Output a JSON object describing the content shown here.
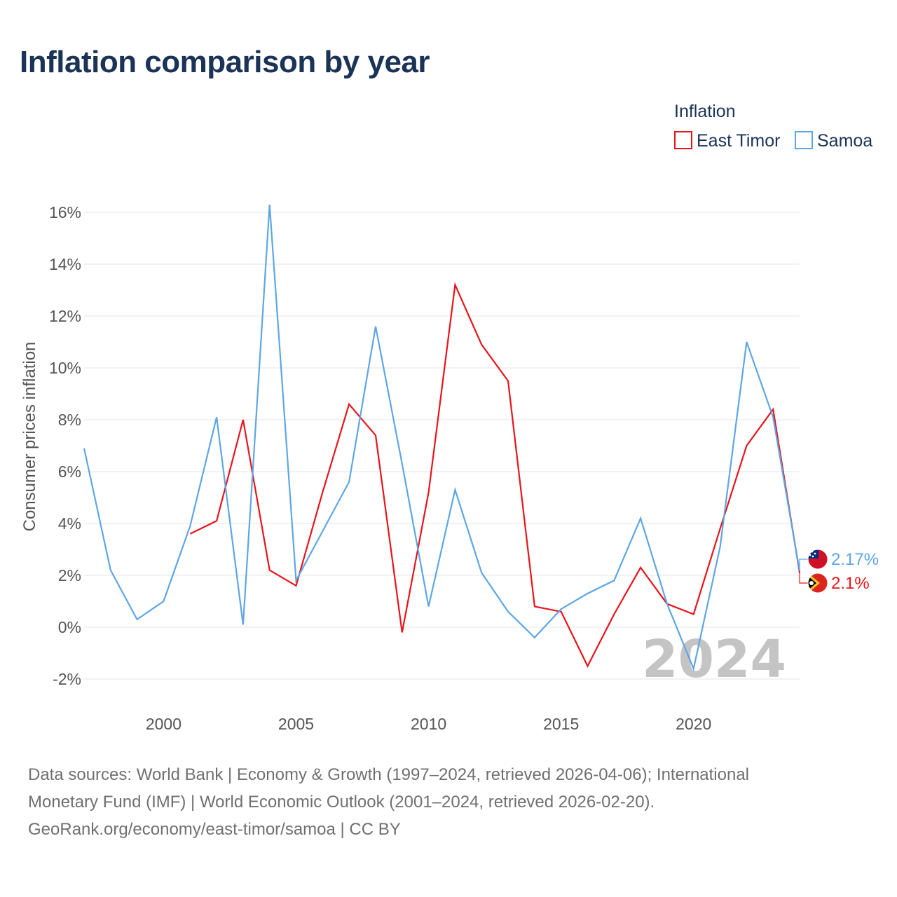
{
  "title": "Inflation comparison by year",
  "legend": {
    "title": "Inflation",
    "items": [
      {
        "name": "East Timor",
        "color": "#e8141b"
      },
      {
        "name": "Samoa",
        "color": "#5ea6e4"
      }
    ]
  },
  "chart_data": {
    "type": "line",
    "ylabel": "Consumer prices inflation",
    "xlabel": "",
    "xlim": [
      1997,
      2024
    ],
    "ylim": [
      -3,
      16.5
    ],
    "yticks": [
      -2,
      0,
      2,
      4,
      6,
      8,
      10,
      12,
      14,
      16
    ],
    "ytick_labels": [
      "-2%",
      "0%",
      "2%",
      "4%",
      "6%",
      "8%",
      "10%",
      "12%",
      "14%",
      "16%"
    ],
    "xticks": [
      2000,
      2005,
      2010,
      2015,
      2020
    ],
    "xtick_labels": [
      "2000",
      "2005",
      "2010",
      "2015",
      "2020"
    ],
    "current_year": "2024",
    "series": [
      {
        "name": "East Timor",
        "color": "#e8141b",
        "end_label": "2.1%",
        "x": [
          2001,
          2002,
          2003,
          2004,
          2005,
          2006,
          2007,
          2008,
          2009,
          2010,
          2011,
          2012,
          2013,
          2014,
          2015,
          2016,
          2017,
          2018,
          2019,
          2020,
          2021,
          2022,
          2023,
          2024
        ],
        "values": [
          3.6,
          4.1,
          8.0,
          2.2,
          1.6,
          5.2,
          8.6,
          7.4,
          -0.2,
          5.2,
          13.2,
          10.9,
          9.5,
          0.8,
          0.6,
          -1.5,
          0.5,
          2.3,
          0.9,
          0.5,
          3.8,
          7.0,
          8.4,
          2.1
        ]
      },
      {
        "name": "Samoa",
        "color": "#5ea6e4",
        "end_label": "2.17%",
        "x": [
          1997,
          1998,
          1999,
          2000,
          2001,
          2002,
          2003,
          2004,
          2005,
          2006,
          2007,
          2008,
          2009,
          2010,
          2011,
          2012,
          2013,
          2014,
          2015,
          2016,
          2017,
          2018,
          2019,
          2020,
          2021,
          2022,
          2023,
          2024
        ],
        "values": [
          6.9,
          2.2,
          0.3,
          1.0,
          3.9,
          8.1,
          0.1,
          16.3,
          1.8,
          3.7,
          5.6,
          11.6,
          6.3,
          0.8,
          5.3,
          2.1,
          0.6,
          -0.4,
          0.7,
          1.3,
          1.8,
          4.2,
          0.9,
          -1.6,
          3.1,
          11.0,
          8.1,
          2.17
        ]
      }
    ]
  },
  "footer": {
    "line1": "Data sources: World Bank | Economy & Growth (1997–2024, retrieved 2026-04-06); International",
    "line2": "Monetary Fund (IMF) | World Economic Outlook (2001–2024, retrieved 2026-02-20).",
    "line3": "GeoRank.org/economy/east-timor/samoa | CC BY"
  }
}
